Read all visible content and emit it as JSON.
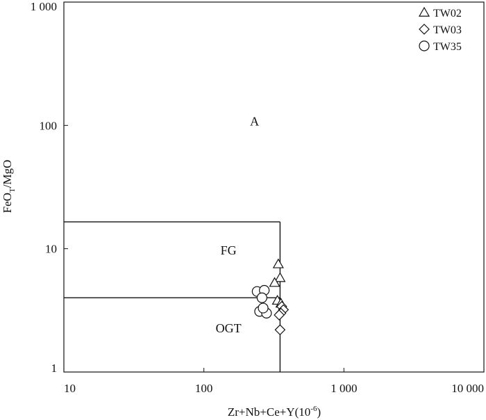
{
  "chart_data": {
    "type": "scatter",
    "xscale": "log",
    "yscale": "log",
    "xlim": [
      10,
      10000
    ],
    "ylim": [
      1,
      1000
    ],
    "xlabel": "Zr+Nb+Ce+Y(10",
    "xlabel_sup": "-6",
    "xlabel_end": ")",
    "ylabel_prefix": "FeO",
    "ylabel_sub": "T",
    "ylabel_suffix": "/MgO",
    "xticks": [
      {
        "value": 10,
        "label": "10"
      },
      {
        "value": 100,
        "label": "100"
      },
      {
        "value": 1000,
        "label": "1 000"
      },
      {
        "value": 10000,
        "label": "10 000"
      }
    ],
    "yticks": [
      {
        "value": 1,
        "label": "1"
      },
      {
        "value": 10,
        "label": "10"
      },
      {
        "value": 100,
        "label": "100"
      },
      {
        "value": 1000,
        "label": "1 000"
      }
    ],
    "grid": false,
    "legend_position": "top-right",
    "boundaries": [
      {
        "from": [
          10,
          16.5
        ],
        "to": [
          350,
          16.5
        ]
      },
      {
        "from": [
          350,
          16.5
        ],
        "to": [
          350,
          1
        ]
      },
      {
        "from": [
          10,
          4
        ],
        "to": [
          350,
          4
        ]
      }
    ],
    "field_labels": [
      {
        "text": "A",
        "x": 230,
        "y": 100
      },
      {
        "text": "FG",
        "x": 150,
        "y": 9.0
      },
      {
        "text": "OGT",
        "x": 150,
        "y": 2.1
      }
    ],
    "series": [
      {
        "name": "TW02",
        "marker": "triangle",
        "points": [
          [
            340,
            7.5
          ],
          [
            350,
            5.8
          ],
          [
            320,
            5.3
          ],
          [
            335,
            3.8
          ],
          [
            355,
            3.6
          ]
        ]
      },
      {
        "name": "TW03",
        "marker": "diamond",
        "points": [
          [
            360,
            3.4
          ],
          [
            370,
            3.2
          ],
          [
            355,
            3.0
          ],
          [
            345,
            2.9
          ],
          [
            350,
            2.2
          ]
        ]
      },
      {
        "name": "TW35",
        "marker": "circle",
        "points": [
          [
            240,
            4.5
          ],
          [
            270,
            4.6
          ],
          [
            260,
            4.0
          ],
          [
            250,
            3.1
          ],
          [
            280,
            3.0
          ],
          [
            265,
            3.3
          ]
        ]
      }
    ]
  }
}
